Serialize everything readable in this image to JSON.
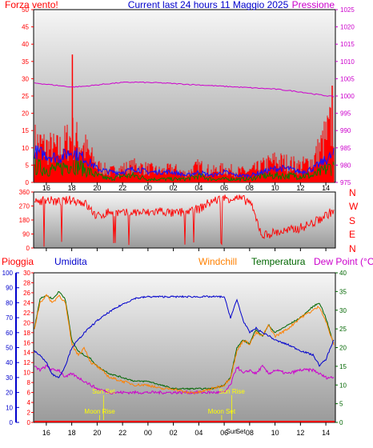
{
  "title_bar": {
    "left": "Forza vento!",
    "center": "Current last 24 hours 11 Maggio 2025",
    "right": "Pressione"
  },
  "legend_bottom": {
    "pioggia": "Pioggia",
    "umidita": "Umidita",
    "windchill": "Windchill",
    "temperatura": "Temperatura",
    "dew_point": "Dew Point (°C)"
  },
  "colors": {
    "wind": "#ff0000",
    "gust_area": "#ff0000",
    "wind_avg_blue": "#1010ff",
    "wind_green": "#008000",
    "pressure": "#cc00cc",
    "direction": "#ff0000",
    "humidity": "#0000cc",
    "temperature": "#006600",
    "windchill": "#ff8000",
    "dewpoint": "#cc00cc",
    "rain": "#ff0000",
    "sun_moon": "#ffff00"
  },
  "x_axis_ticks": [
    "16",
    "18",
    "20",
    "22",
    "00",
    "02",
    "04",
    "06",
    "08",
    "10",
    "12",
    "14"
  ],
  "chart_data": [
    {
      "type": "area",
      "name": "wind_pressure",
      "left_axis": {
        "ticks": [
          "0",
          "5",
          "10",
          "15",
          "20",
          "25",
          "30",
          "35",
          "40",
          "45",
          "50"
        ],
        "ylim": [
          0,
          50
        ]
      },
      "right_axis": {
        "ticks": [
          "975",
          "980",
          "985",
          "990",
          "995",
          "1000",
          "1005",
          "1010",
          "1015",
          "1020",
          "1025"
        ],
        "ylim": [
          975,
          1025
        ]
      },
      "x": [
        15,
        16,
        17,
        18,
        19,
        20,
        21,
        22,
        23,
        24,
        25,
        26,
        27,
        28,
        29,
        30,
        31,
        32,
        33,
        34,
        35,
        36,
        37,
        38.6
      ],
      "series": [
        {
          "name": "gust",
          "values": [
            15,
            13,
            12,
            17,
            13,
            6,
            4,
            5,
            6,
            5,
            4,
            5,
            3,
            6,
            4,
            5,
            4,
            4,
            6,
            8,
            7,
            6,
            8,
            22
          ]
        },
        {
          "name": "wind_avg",
          "values": [
            9,
            8,
            7,
            9,
            7,
            4,
            3,
            3,
            4,
            3,
            3,
            3,
            2,
            3,
            2,
            3,
            2,
            2,
            3,
            4,
            4,
            3,
            4,
            8
          ]
        },
        {
          "name": "wind_min",
          "values": [
            5,
            4,
            4,
            6,
            4,
            2,
            1,
            2,
            2,
            1,
            1,
            1,
            1,
            2,
            1,
            1,
            1,
            1,
            2,
            2,
            2,
            2,
            2,
            5
          ]
        },
        {
          "name": "pressure",
          "values": [
            1003.8,
            1003.4,
            1003,
            1002.6,
            1002.8,
            1003.2,
            1003.6,
            1003.9,
            1004,
            1003.9,
            1003.8,
            1003.6,
            1003.4,
            1003.2,
            1003,
            1002.8,
            1002.6,
            1002.4,
            1002.2,
            1002,
            1001.6,
            1001.2,
            1000.6,
            999.8
          ]
        }
      ],
      "spikes": [
        {
          "x": 18.05,
          "value": 37
        },
        {
          "x": 38.5,
          "value": 28
        }
      ]
    },
    {
      "type": "scatter",
      "name": "wind_direction",
      "left_axis": {
        "ticks": [
          "0",
          "90",
          "180",
          "270",
          "360"
        ],
        "ylim": [
          0,
          360
        ]
      },
      "right_labels": [
        "N",
        "W",
        "S",
        "E",
        "N"
      ],
      "x": [
        15,
        16,
        17,
        18,
        19,
        20,
        21,
        22,
        23,
        24,
        25,
        26,
        27,
        28,
        29,
        30,
        31,
        32,
        33,
        34,
        35,
        36,
        37,
        38.6
      ],
      "values": [
        300,
        310,
        295,
        310,
        290,
        200,
        235,
        220,
        230,
        225,
        240,
        220,
        235,
        250,
        300,
        320,
        320,
        300,
        80,
        100,
        110,
        130,
        160,
        240
      ]
    },
    {
      "type": "line",
      "name": "weather",
      "humidity_axis": {
        "ticks": [
          "0",
          "10",
          "20",
          "30",
          "40",
          "50",
          "60",
          "70",
          "80",
          "90",
          "100"
        ],
        "ylim": [
          0,
          100
        ]
      },
      "rain_axis": {
        "ticks": [
          "0",
          "2",
          "4",
          "6",
          "8",
          "10",
          "12",
          "14",
          "16",
          "18",
          "20",
          "22",
          "24",
          "26",
          "28",
          "30"
        ],
        "ylim": [
          0,
          30
        ]
      },
      "temp_axis": {
        "ticks": [
          "0",
          "5",
          "10",
          "15",
          "20",
          "25",
          "30",
          "35",
          "40"
        ],
        "ylim": [
          0,
          40
        ]
      },
      "x": [
        15,
        15.5,
        16,
        16.5,
        17,
        17.5,
        18,
        18.5,
        19,
        19.5,
        20,
        21,
        22,
        23,
        24,
        25,
        26,
        27,
        28,
        29,
        30,
        30.5,
        31,
        31.5,
        32,
        32.5,
        33,
        33.5,
        34,
        35,
        36,
        37,
        37.5,
        38,
        38.6
      ],
      "series": [
        {
          "name": "Umidita",
          "values": [
            48,
            45,
            40,
            32,
            30,
            38,
            50,
            55,
            60,
            64,
            68,
            74,
            79,
            83,
            84,
            84,
            84,
            84,
            84,
            84,
            84,
            70,
            82,
            68,
            60,
            63,
            60,
            58,
            55,
            52,
            48,
            45,
            38,
            42,
            55
          ]
        },
        {
          "name": "Temperatura",
          "values": [
            24,
            33,
            34,
            33,
            35,
            33,
            22,
            19,
            18,
            17,
            15,
            13,
            12,
            11,
            11,
            10,
            9,
            9,
            9,
            9,
            10,
            12,
            20,
            22,
            21,
            25,
            23,
            26,
            24,
            26,
            28,
            31,
            32,
            28,
            21
          ]
        },
        {
          "name": "Windchill",
          "values": [
            24,
            32,
            34,
            32,
            34,
            32,
            21,
            18,
            20,
            16,
            15,
            12,
            11,
            10,
            10,
            9,
            9,
            8,
            8,
            9,
            10,
            12,
            19,
            22,
            21,
            24,
            23,
            26,
            23,
            25,
            28,
            30,
            31,
            27,
            21
          ]
        },
        {
          "name": "Dew Point",
          "values": [
            15,
            14,
            15,
            14,
            14,
            12,
            13,
            12,
            11,
            10,
            9,
            8,
            8,
            8,
            8,
            8,
            8,
            8,
            8,
            8,
            8,
            10,
            15,
            13,
            14,
            13,
            15,
            13,
            14,
            13,
            14,
            14,
            13,
            12,
            12
          ]
        },
        {
          "name": "Pioggia",
          "values": [
            0,
            0,
            0,
            0,
            0,
            0,
            0,
            0,
            0,
            0,
            0,
            0,
            0,
            0,
            0,
            0,
            0,
            0,
            0,
            0,
            0,
            0,
            0,
            0,
            0,
            0,
            0,
            0,
            0,
            0,
            0,
            0,
            0,
            0,
            0
          ]
        }
      ],
      "annotations": [
        {
          "label": "Sun Set",
          "x": 20.5,
          "value": 5.8
        },
        {
          "label": "Moon Rise",
          "x": 20.2,
          "value": 1.8
        },
        {
          "label": "Sun Rise",
          "x": 30.6,
          "value": 5.8
        },
        {
          "label": "Moon Set",
          "x": 29.8,
          "value": 1.8
        },
        {
          "label": "Sun",
          "x": 30.6,
          "value": 0
        },
        {
          "label": "Set",
          "x": 31.3,
          "value": 0
        }
      ]
    }
  ]
}
